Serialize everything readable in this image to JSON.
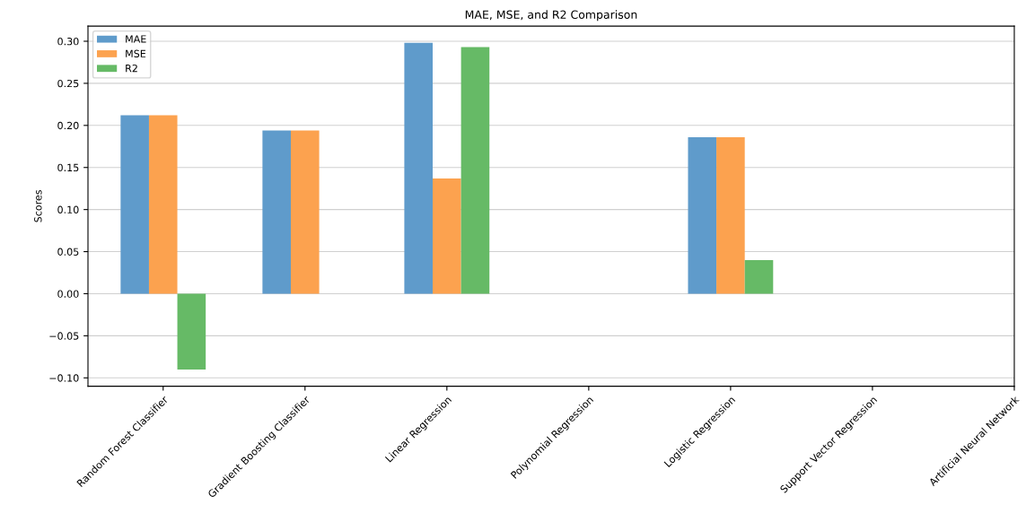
{
  "chart_data": {
    "type": "bar",
    "title": "MAE, MSE, and R2 Comparison",
    "ylabel": "Scores",
    "categories": [
      "Random Forest Classifier",
      "Gradient Boosting Classifier",
      "Linear Regression",
      "Polynomial Regression",
      "Logistic Regression",
      "Support Vector Regression",
      "Artificial Neural Network"
    ],
    "series": [
      {
        "name": "MAE",
        "color": "#5f9bcb",
        "values": [
          0.212,
          0.194,
          0.298,
          null,
          0.186,
          null,
          null
        ]
      },
      {
        "name": "MSE",
        "color": "#fca24f",
        "values": [
          0.212,
          0.194,
          0.137,
          null,
          0.186,
          null,
          null
        ]
      },
      {
        "name": "R2",
        "color": "#66ba66",
        "values": [
          -0.09,
          null,
          0.293,
          null,
          0.04,
          null,
          null
        ]
      }
    ],
    "ylim": [
      -0.11,
      0.318
    ],
    "yticks": [
      {
        "value": -0.1,
        "label": "−0.10"
      },
      {
        "value": -0.05,
        "label": "−0.05"
      },
      {
        "value": 0,
        "label": "0.00"
      },
      {
        "value": 0.05,
        "label": "0.05"
      },
      {
        "value": 0.1,
        "label": "0.10"
      },
      {
        "value": 0.15,
        "label": "0.15"
      },
      {
        "value": 0.2,
        "label": "0.20"
      },
      {
        "value": 0.25,
        "label": "0.25"
      },
      {
        "value": 0.3,
        "label": "0.30"
      }
    ],
    "grid": "y",
    "legend": "top left"
  }
}
